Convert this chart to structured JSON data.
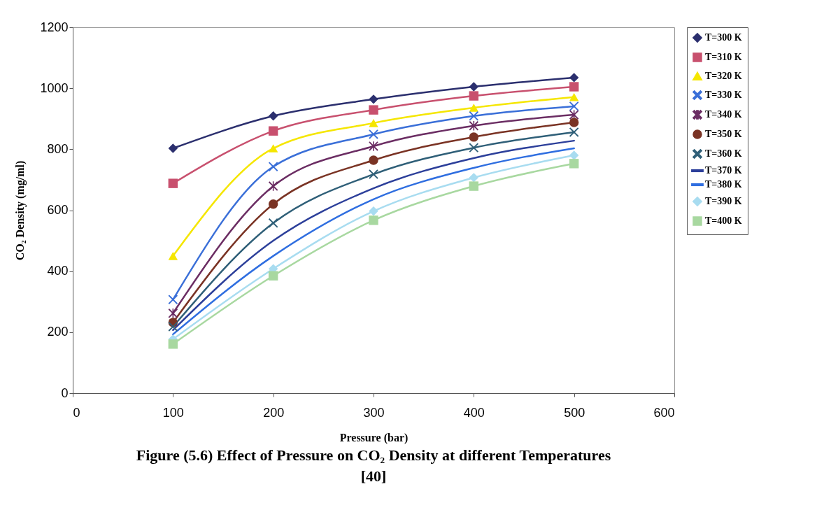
{
  "chart_data": {
    "type": "line",
    "title": "Figure (5.6) Effect of Pressure on CO₂ Density at different Temperatures",
    "annotations": [
      "[40]"
    ],
    "xlabel": "Pressure (bar)",
    "ylabel": "CO₂ Density (mg/ml)",
    "x": [
      100,
      200,
      300,
      400,
      500
    ],
    "xlim": [
      0,
      600
    ],
    "xticks": [
      0,
      100,
      200,
      300,
      400,
      500,
      600
    ],
    "ylim": [
      0,
      1200
    ],
    "yticks": [
      0,
      200,
      400,
      600,
      800,
      1000,
      1200
    ],
    "grid": false,
    "legend": "right",
    "series": [
      {
        "name": "T=300 K",
        "color": "#2b2f6e",
        "marker": "diamond",
        "values": [
          803,
          909,
          964,
          1005,
          1035
        ]
      },
      {
        "name": "T=310 K",
        "color": "#c8506e",
        "marker": "square",
        "values": [
          688,
          860,
          929,
          975,
          1005
        ]
      },
      {
        "name": "T=320 K",
        "color": "#f5e600",
        "marker": "triangle",
        "values": [
          450,
          803,
          886,
          936,
          971
        ]
      },
      {
        "name": "T=330 K",
        "color": "#3a6fd8",
        "marker": "cross",
        "values": [
          307,
          743,
          849,
          909,
          941
        ]
      },
      {
        "name": "T=340 K",
        "color": "#6b2d63",
        "marker": "star",
        "values": [
          262,
          679,
          810,
          877,
          913
        ]
      },
      {
        "name": "T=350 K",
        "color": "#7a3324",
        "marker": "circle",
        "values": [
          232,
          620,
          764,
          840,
          888
        ]
      },
      {
        "name": "T=360 K",
        "color": "#2f5f78",
        "marker": "cross",
        "values": [
          218,
          558,
          718,
          805,
          856
        ]
      },
      {
        "name": "T=370 K",
        "color": "#2c3f9a",
        "marker": "none",
        "values": [
          207,
          500,
          672,
          771,
          828
        ]
      },
      {
        "name": "T=380 K",
        "color": "#2f6ee0",
        "marker": "none",
        "values": [
          193,
          450,
          636,
          739,
          803
        ]
      },
      {
        "name": "T=390 K",
        "color": "#a8dcf0",
        "marker": "diamond",
        "values": [
          177,
          408,
          597,
          707,
          780
        ]
      },
      {
        "name": "T=400 K",
        "color": "#a8d8a0",
        "marker": "square",
        "values": [
          161,
          385,
          567,
          679,
          753
        ]
      }
    ]
  }
}
